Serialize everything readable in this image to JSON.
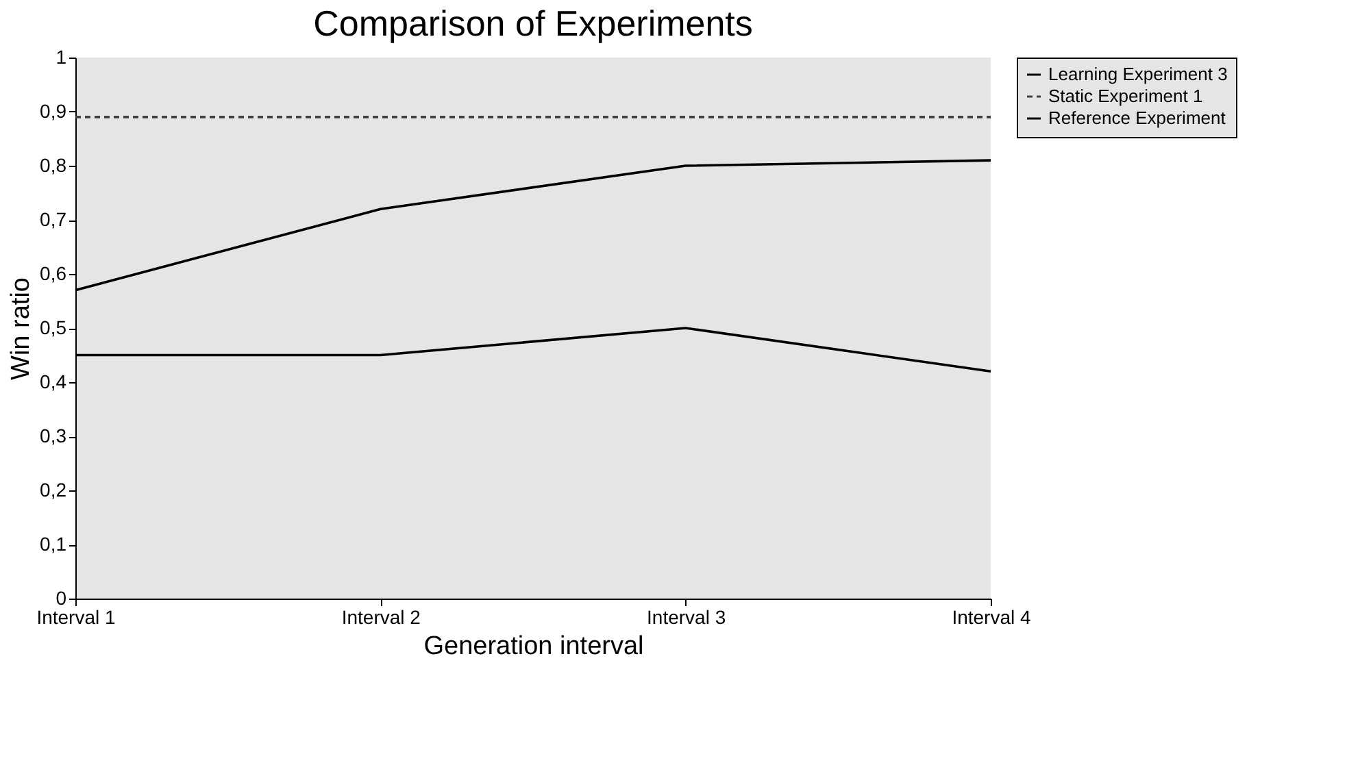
{
  "chart_data": {
    "type": "line",
    "title": "Comparison of Experiments",
    "xlabel": "Generation interval",
    "ylabel": "Win ratio",
    "categories": [
      "Interval 1",
      "Interval 2",
      "Interval 3",
      "Interval 4"
    ],
    "series": [
      {
        "name": "Learning Experiment 3",
        "color": "#000000",
        "line_style": "solid",
        "values": [
          0.57,
          0.72,
          0.8,
          0.81
        ]
      },
      {
        "name": "Static Experiment 1",
        "color": "#404040",
        "line_style": "dashed",
        "values": [
          0.89,
          0.89,
          0.89,
          0.89
        ]
      },
      {
        "name": "Reference Experiment",
        "color": "#000000",
        "line_style": "solid",
        "values": [
          0.45,
          0.45,
          0.5,
          0.42
        ]
      }
    ],
    "ylim": [
      0,
      1
    ],
    "yticks": [
      {
        "value": 0,
        "label": "0"
      },
      {
        "value": 0.1,
        "label": "0,1"
      },
      {
        "value": 0.2,
        "label": "0,2"
      },
      {
        "value": 0.3,
        "label": "0,3"
      },
      {
        "value": 0.4,
        "label": "0,4"
      },
      {
        "value": 0.5,
        "label": "0,5"
      },
      {
        "value": 0.6,
        "label": "0,6"
      },
      {
        "value": 0.7,
        "label": "0,7"
      },
      {
        "value": 0.8,
        "label": "0,8"
      },
      {
        "value": 0.9,
        "label": "0,9"
      },
      {
        "value": 1,
        "label": "1"
      }
    ],
    "grid": false,
    "legend": "right",
    "marker": "none"
  }
}
